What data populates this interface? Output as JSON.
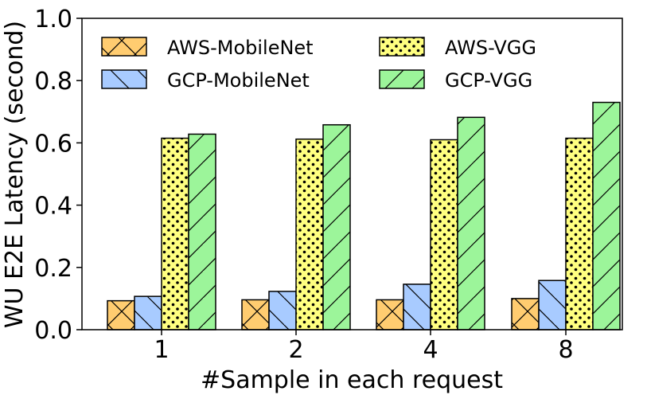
{
  "chart_data": {
    "type": "bar",
    "title": "",
    "xlabel": "#Sample in each request",
    "ylabel": "WU E2E Latency (second)",
    "categories": [
      "1",
      "2",
      "4",
      "8"
    ],
    "ylim": [
      0,
      1.0
    ],
    "yticks": [
      "0.0",
      "0.2",
      "0.4",
      "0.6",
      "0.8",
      "1.0"
    ],
    "grid": false,
    "legend_position": "top",
    "series": [
      {
        "name": "AWS-MobileNet",
        "values": [
          0.093,
          0.096,
          0.096,
          0.1
        ],
        "color": "#ffcc70",
        "hatch": "x"
      },
      {
        "name": "GCP-MobileNet",
        "values": [
          0.107,
          0.123,
          0.146,
          0.158
        ],
        "color": "#a8cbff",
        "hatch": "\\"
      },
      {
        "name": "AWS-VGG",
        "values": [
          0.615,
          0.612,
          0.61,
          0.615
        ],
        "color": "#ffff80",
        "hatch": "o"
      },
      {
        "name": "GCP-VGG",
        "values": [
          0.628,
          0.658,
          0.682,
          0.73
        ],
        "color": "#9cf59a",
        "hatch": "/"
      }
    ]
  }
}
